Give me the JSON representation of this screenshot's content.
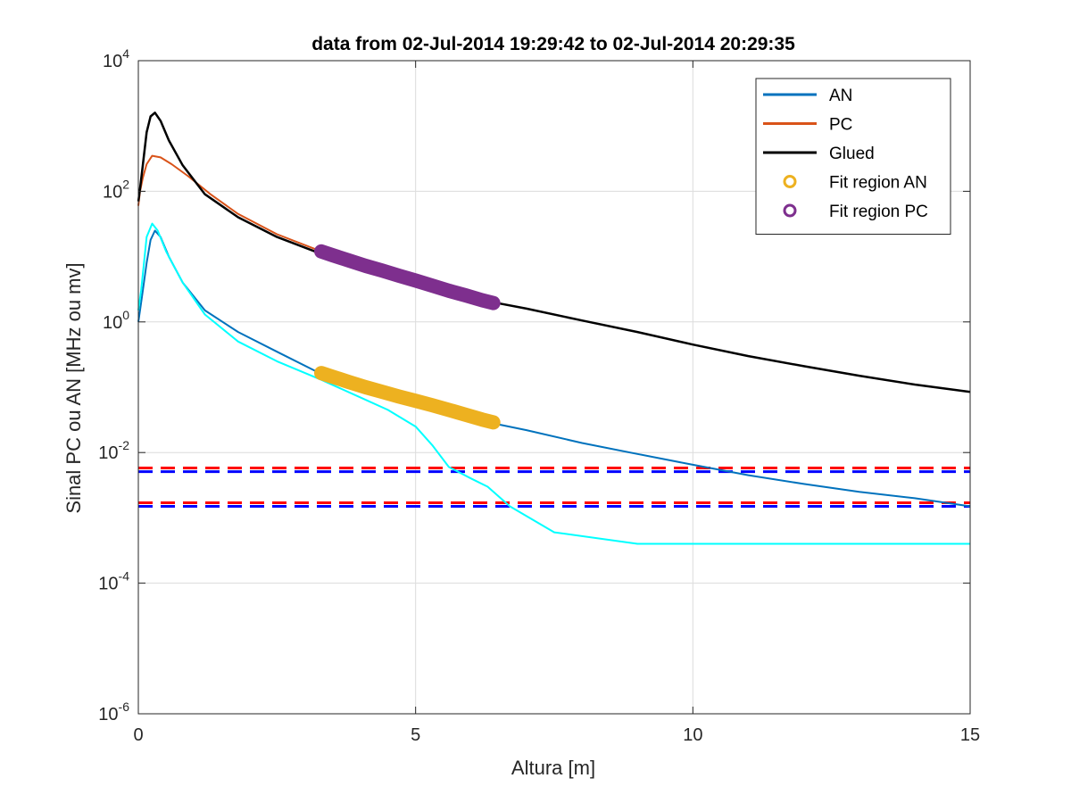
{
  "chart_data": {
    "type": "line",
    "title": "data from 02-Jul-2014 19:29:42 to 02-Jul-2014 20:29:35",
    "xlabel": "Altura [m]",
    "ylabel": "Sinal PC ou AN [MHz ou mv]",
    "xlim": [
      0,
      15
    ],
    "ylim": [
      1e-06,
      10000.0
    ],
    "yscale": "log",
    "grid": true,
    "legend_position": "top-right",
    "x_ticks": [
      0,
      5,
      10,
      15
    ],
    "x_tick_labels": [
      "0",
      "5",
      "10",
      "15"
    ],
    "y_ticks": [
      {
        "value": 1e-06,
        "base": "10",
        "exp": "-6"
      },
      {
        "value": 0.0001,
        "base": "10",
        "exp": "-4"
      },
      {
        "value": 0.01,
        "base": "10",
        "exp": "-2"
      },
      {
        "value": 1,
        "base": "10",
        "exp": "0"
      },
      {
        "value": 100.0,
        "base": "10",
        "exp": "2"
      },
      {
        "value": 10000.0,
        "base": "10",
        "exp": "4"
      }
    ],
    "series": [
      {
        "name": "AN",
        "color": "#0072bd",
        "legend": true,
        "x": [
          0,
          0.03,
          0.08,
          0.15,
          0.22,
          0.3,
          0.4,
          0.55,
          0.8,
          1.2,
          1.8,
          2.5,
          3.3,
          4,
          5,
          6,
          6.4,
          7,
          8,
          9,
          10,
          11,
          12,
          13,
          14,
          15
        ],
        "y": [
          1,
          1.5,
          3,
          8,
          18,
          25,
          20,
          10,
          4,
          1.5,
          0.7,
          0.35,
          0.16,
          0.1,
          0.055,
          0.032,
          0.028,
          0.022,
          0.014,
          0.0095,
          0.0065,
          0.0045,
          0.0033,
          0.0025,
          0.002,
          0.0015
        ]
      },
      {
        "name": "PC",
        "color": "#d95319",
        "legend": true,
        "x": [
          0,
          0.03,
          0.08,
          0.15,
          0.25,
          0.4,
          0.6,
          0.9,
          1.3,
          1.8,
          2.5,
          3.3
        ],
        "y": [
          60,
          100,
          160,
          260,
          350,
          330,
          260,
          170,
          90,
          45,
          22,
          12
        ]
      },
      {
        "name": "Glued",
        "color": "#000000",
        "legend": true,
        "x": [
          0,
          0.03,
          0.08,
          0.15,
          0.22,
          0.3,
          0.4,
          0.55,
          0.8,
          1.2,
          1.8,
          2.5,
          3.3,
          4,
          5,
          6,
          6.4,
          7,
          8,
          9,
          10,
          11,
          12,
          13,
          14,
          15
        ],
        "y": [
          70,
          110,
          250,
          800,
          1400,
          1600,
          1200,
          600,
          250,
          90,
          40,
          20,
          11,
          7,
          4,
          2.4,
          2,
          1.6,
          1.05,
          0.7,
          0.45,
          0.3,
          0.21,
          0.15,
          0.11,
          0.085
        ]
      },
      {
        "name": "",
        "color": "#00ffff",
        "legend": false,
        "x": [
          0,
          0.05,
          0.15,
          0.25,
          0.35,
          0.5,
          0.8,
          1.2,
          1.8,
          2.5,
          3.3,
          4,
          4.5,
          5,
          5.3,
          5.6,
          6,
          6.3,
          6.7,
          7.5,
          9,
          11,
          13,
          15
        ],
        "y": [
          1.5,
          3,
          20,
          32,
          25,
          12,
          4,
          1.3,
          0.5,
          0.25,
          0.13,
          0.07,
          0.045,
          0.025,
          0.013,
          0.006,
          0.004,
          0.003,
          0.0015,
          0.0006,
          0.0004,
          0.0004,
          0.0004,
          0.0004
        ]
      },
      {
        "name": "Fit region AN",
        "color": "#edb120",
        "legend": true,
        "marker": "o",
        "x": [
          3.3,
          3.5,
          3.8,
          4.1,
          4.4,
          4.7,
          5,
          5.3,
          5.6,
          5.9,
          6.2,
          6.4
        ],
        "y": [
          0.165,
          0.145,
          0.12,
          0.1,
          0.085,
          0.072,
          0.062,
          0.053,
          0.045,
          0.038,
          0.032,
          0.029
        ]
      },
      {
        "name": "Fit region PC",
        "color": "#7e2f8e",
        "legend": true,
        "marker": "o",
        "x": [
          3.3,
          3.5,
          3.8,
          4.1,
          4.4,
          4.7,
          5,
          5.3,
          5.6,
          5.9,
          6.2,
          6.4
        ],
        "y": [
          12,
          10.5,
          8.7,
          7.2,
          6.1,
          5.1,
          4.3,
          3.6,
          3.0,
          2.55,
          2.15,
          1.95
        ]
      }
    ],
    "reference_lines": [
      {
        "y": 0.0058,
        "color": "#ff0000"
      },
      {
        "y": 0.0051,
        "color": "#0000ff"
      },
      {
        "y": 0.0017,
        "color": "#ff0000"
      },
      {
        "y": 0.0015,
        "color": "#0000ff"
      }
    ]
  }
}
